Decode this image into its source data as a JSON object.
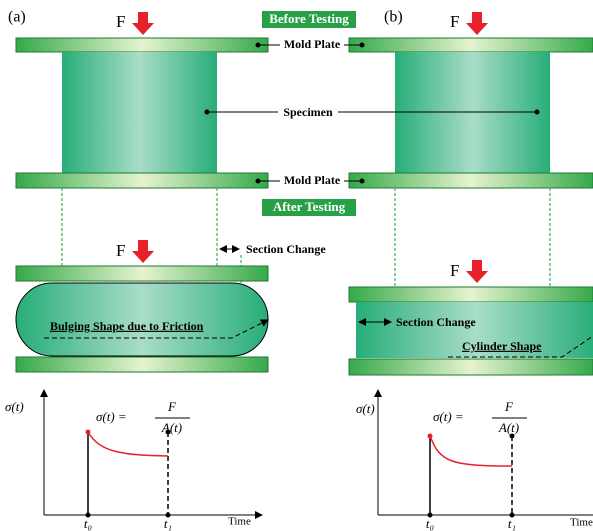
{
  "panels": [
    {
      "label": "(a)",
      "top_force": "F",
      "bottom_force": "F",
      "section_change": "Section Change",
      "shape": "Bulging Shape due to Friction",
      "graph": {
        "y_label": "σ(t)",
        "formula_left": "σ(t) =",
        "numerator": "F",
        "denominator": "A(t)",
        "t0": "t₀",
        "t1": "t₁",
        "x_label": "Time"
      }
    },
    {
      "label": "(b)",
      "top_force": "F",
      "bottom_force": "F",
      "section_change": "Section Change",
      "shape": "Cylinder Shape",
      "graph": {
        "y_label": "σ(t)",
        "formula_left": "σ(t) =",
        "numerator": "F",
        "denominator": "A(t)",
        "t0": "t₀",
        "t1": "t₁",
        "x_label": "Time"
      }
    }
  ],
  "before_testing": "Before Testing",
  "after_testing": "After Testing",
  "mold_plate_top": "Mold Plate",
  "mold_plate_bottom": "Mold Plate",
  "specimen": "Specimen"
}
